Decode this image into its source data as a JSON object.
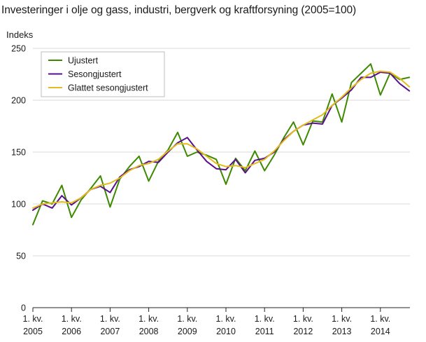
{
  "chart_data": {
    "type": "line",
    "title": "Investeringer i olje og gass, industri, bergverk og kraftforsyning (2005=100)",
    "ylabel": "Indeks",
    "ylim": [
      0,
      250
    ],
    "yticks": [
      0,
      50,
      100,
      150,
      200,
      250
    ],
    "grid": true,
    "legend_position": "top-left",
    "x_tick_labels": [
      {
        "line1": "1. kv.",
        "line2": "2005",
        "index": 0
      },
      {
        "line1": "1. kv.",
        "line2": "2006",
        "index": 4
      },
      {
        "line1": "1. kv.",
        "line2": "2007",
        "index": 8
      },
      {
        "line1": "1. kv.",
        "line2": "2008",
        "index": 12
      },
      {
        "line1": "1. kv.",
        "line2": "2009",
        "index": 16
      },
      {
        "line1": "1. kv.",
        "line2": "2010",
        "index": 20
      },
      {
        "line1": "1. kv.",
        "line2": "2011",
        "index": 24
      },
      {
        "line1": "1. kv.",
        "line2": "2012",
        "index": 28
      },
      {
        "line1": "1. kv.",
        "line2": "2013",
        "index": 32
      },
      {
        "line1": "1. kv.",
        "line2": "2014",
        "index": 36
      }
    ],
    "series": [
      {
        "name": "Ujustert",
        "color": "#3d8a00",
        "values": [
          80,
          103,
          100,
          118,
          87,
          104,
          115,
          127,
          97,
          124,
          136,
          146,
          122,
          141,
          152,
          169,
          146,
          150,
          147,
          143,
          119,
          144,
          132,
          151,
          132,
          147,
          164,
          179,
          157,
          180,
          179,
          206,
          179,
          217,
          226,
          235,
          205,
          226,
          220,
          222
        ]
      },
      {
        "name": "Sesongjustert",
        "color": "#5a0f8c",
        "values": [
          94,
          100,
          96,
          108,
          99,
          106,
          114,
          117,
          111,
          126,
          133,
          136,
          141,
          140,
          150,
          159,
          164,
          152,
          141,
          134,
          133,
          143,
          130,
          142,
          144,
          150,
          162,
          170,
          176,
          178,
          177,
          195,
          202,
          210,
          222,
          222,
          227,
          226,
          216,
          209
        ]
      },
      {
        "name": "Glattet sesongjustert",
        "color": "#e2bc1f",
        "values": [
          96,
          100,
          101,
          102,
          101,
          106,
          114,
          118,
          120,
          125,
          132,
          137,
          139,
          143,
          151,
          158,
          158,
          153,
          146,
          139,
          136,
          137,
          135,
          139,
          143,
          151,
          161,
          170,
          176,
          181,
          186,
          195,
          203,
          212,
          220,
          226,
          228,
          227,
          221,
          213
        ]
      }
    ]
  }
}
